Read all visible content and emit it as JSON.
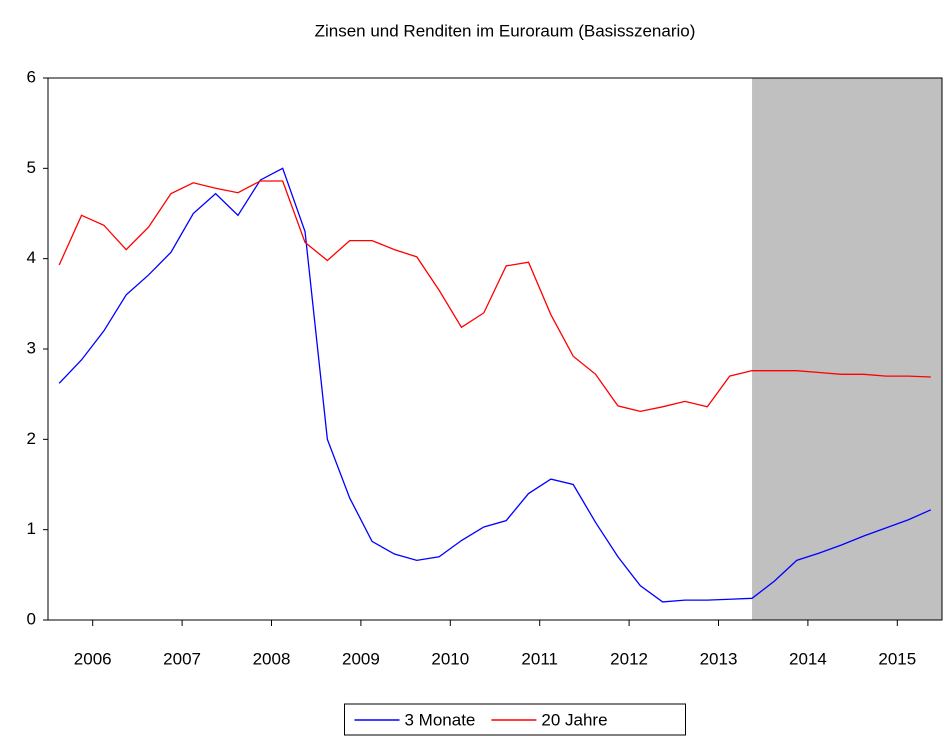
{
  "chart_data": {
    "type": "line",
    "title": "Zinsen und Renditen im Euroraum (Basisszenario)",
    "x": [
      2006.125,
      2006.375,
      2006.625,
      2006.875,
      2007.125,
      2007.375,
      2007.625,
      2007.875,
      2008.125,
      2008.375,
      2008.625,
      2008.875,
      2009.125,
      2009.375,
      2009.625,
      2009.875,
      2010.125,
      2010.375,
      2010.625,
      2010.875,
      2011.125,
      2011.375,
      2011.625,
      2011.875,
      2012.125,
      2012.375,
      2012.625,
      2012.875,
      2013.125,
      2013.375,
      2013.625,
      2013.875,
      2014.125,
      2014.375,
      2014.625,
      2014.875,
      2015.125,
      2015.375,
      2015.625,
      2015.875
    ],
    "series": [
      {
        "name": "3 Monate",
        "color": "#0000ff",
        "values": [
          2.62,
          2.88,
          3.2,
          3.6,
          3.82,
          4.07,
          4.5,
          4.72,
          4.48,
          4.87,
          5.0,
          4.3,
          2.0,
          1.35,
          0.87,
          0.73,
          0.66,
          0.7,
          0.88,
          1.03,
          1.1,
          1.4,
          1.56,
          1.5,
          1.08,
          0.7,
          0.38,
          0.2,
          0.22,
          0.22,
          0.23,
          0.24,
          0.43,
          0.66,
          0.74,
          0.83,
          0.93,
          1.02,
          1.11,
          1.22
        ]
      },
      {
        "name": "20 Jahre",
        "color": "#ff0000",
        "values": [
          3.93,
          4.48,
          4.37,
          4.1,
          4.35,
          4.72,
          4.84,
          4.78,
          4.73,
          4.86,
          4.86,
          4.18,
          3.98,
          4.2,
          4.2,
          4.1,
          4.02,
          3.65,
          3.24,
          3.4,
          3.92,
          3.96,
          3.38,
          2.92,
          2.72,
          2.37,
          2.31,
          2.36,
          2.42,
          2.36,
          2.7,
          2.76,
          2.76,
          2.76,
          2.74,
          2.72,
          2.72,
          2.7,
          2.7,
          2.69
        ]
      }
    ],
    "xlim": [
      2006,
      2016
    ],
    "xticks": [
      {
        "value": 2006.5,
        "label": "2006"
      },
      {
        "value": 2007.5,
        "label": "2007"
      },
      {
        "value": 2008.5,
        "label": "2008"
      },
      {
        "value": 2009.5,
        "label": "2009"
      },
      {
        "value": 2010.5,
        "label": "2010"
      },
      {
        "value": 2011.5,
        "label": "2011"
      },
      {
        "value": 2012.5,
        "label": "2012"
      },
      {
        "value": 2013.5,
        "label": "2013"
      },
      {
        "value": 2014.5,
        "label": "2014"
      },
      {
        "value": 2015.5,
        "label": "2015"
      }
    ],
    "ylim": [
      0,
      6
    ],
    "yticks": [
      0,
      1,
      2,
      3,
      4,
      5,
      6
    ],
    "shaded_xrange": [
      2013.875,
      2016
    ],
    "shade_color": "#c0c0c0",
    "legend": "bottom"
  }
}
